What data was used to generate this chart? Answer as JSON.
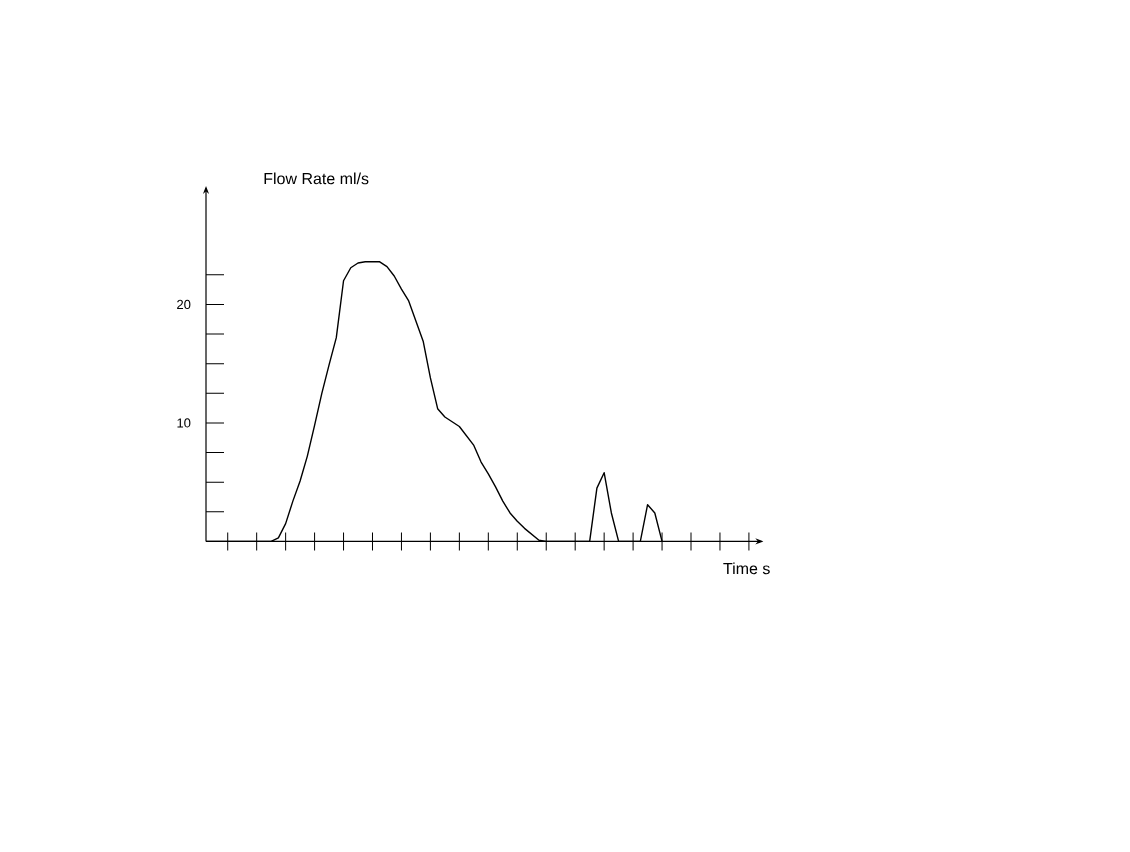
{
  "chart_data": {
    "type": "line",
    "xlabel": "Time s",
    "ylabel": "Flow Rate ml/s",
    "categories": [
      null,
      null,
      null,
      null,
      null,
      null,
      null,
      null,
      null,
      null,
      null,
      null,
      null,
      null,
      null,
      null,
      null,
      null,
      null,
      null,
      null,
      null,
      null,
      null,
      null,
      null,
      null,
      null,
      null,
      null,
      null,
      null,
      null,
      null,
      null,
      null,
      null,
      null,
      null,
      null,
      null,
      null,
      null,
      null,
      null,
      null,
      null,
      null,
      null,
      null,
      null,
      null,
      null,
      null,
      null,
      null,
      null,
      null,
      null,
      null,
      null,
      null,
      null,
      null,
      null,
      null,
      null,
      null,
      null,
      null,
      null,
      null,
      null,
      null,
      null,
      null,
      null,
      null
    ],
    "values": [
      0,
      0,
      0,
      0,
      0,
      0,
      0,
      0,
      0,
      0,
      0.3,
      1.5,
      3.4,
      5.1,
      7.2,
      9.8,
      12.5,
      14.9,
      17.2,
      22.0,
      23.1,
      23.5,
      23.6,
      23.6,
      23.6,
      23.2,
      22.4,
      21.3,
      20.3,
      18.6,
      16.9,
      13.8,
      11.2,
      10.5,
      10.1,
      9.7,
      8.9,
      8.1,
      6.7,
      5.7,
      4.6,
      3.4,
      2.4,
      1.7,
      1.1,
      0.6,
      0.1,
      0,
      0,
      0,
      0,
      0,
      0,
      0,
      4.5,
      5.8,
      2.4,
      0,
      0,
      0,
      0,
      3.1,
      2.4,
      0,
      null,
      null,
      null,
      null,
      null,
      null,
      null,
      null,
      null,
      null,
      null,
      null,
      null,
      null
    ],
    "color": "#000000",
    "ylim": [
      0,
      30
    ],
    "yticks": [
      {
        "value": 2.5,
        "label": null
      },
      {
        "value": 5,
        "label": null
      },
      {
        "value": 7.5,
        "label": null
      },
      10,
      {
        "value": 12.5,
        "label": null
      },
      {
        "value": 15,
        "label": null
      },
      {
        "value": 17.5,
        "label": null
      },
      20,
      {
        "value": 22.5,
        "label": null
      }
    ],
    "tick_labels": "y"
  }
}
